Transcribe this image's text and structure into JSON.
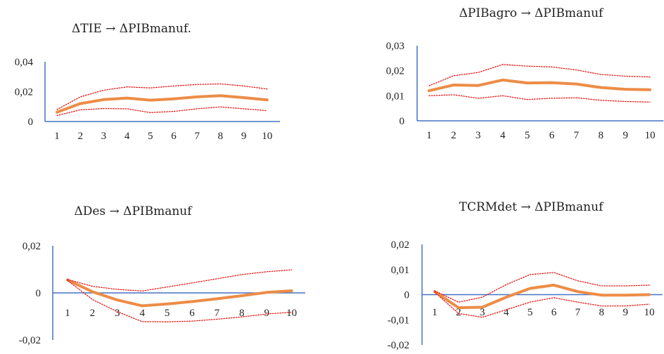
{
  "colors": {
    "axis": "#4472C4",
    "irf": "#ED8C46",
    "band": "#E01C1C"
  },
  "chart_data": [
    {
      "type": "line",
      "title": "ΔTIE → ΔPIBmanuf.",
      "x": [
        1,
        2,
        3,
        4,
        5,
        6,
        7,
        8,
        9,
        10
      ],
      "ylim": [
        0,
        0.04
      ],
      "yticks": [
        0,
        0.02,
        0.04
      ],
      "ytick_labels": [
        "0",
        "0,02",
        "0,04"
      ],
      "xtick_labels": [
        "1",
        "2",
        "3",
        "4",
        "5",
        "6",
        "7",
        "8",
        "9",
        "10"
      ],
      "series": [
        {
          "role": "irf",
          "values": [
            0.0062,
            0.012,
            0.0147,
            0.0157,
            0.0143,
            0.0152,
            0.0165,
            0.0173,
            0.016,
            0.0145
          ]
        },
        {
          "role": "upper",
          "values": [
            0.008,
            0.0165,
            0.021,
            0.0232,
            0.0225,
            0.0238,
            0.0248,
            0.0252,
            0.0238,
            0.0218
          ]
        },
        {
          "role": "lower",
          "values": [
            0.004,
            0.0078,
            0.0087,
            0.0085,
            0.006,
            0.0068,
            0.0085,
            0.0098,
            0.0085,
            0.0073
          ]
        }
      ]
    },
    {
      "type": "line",
      "title": "ΔPIBagro → ΔPIBmanuf",
      "x": [
        1,
        2,
        3,
        4,
        5,
        6,
        7,
        8,
        9,
        10
      ],
      "ylim": [
        0,
        0.03
      ],
      "yticks": [
        0,
        0.01,
        0.02,
        0.03
      ],
      "ytick_labels": [
        "0",
        "0,01",
        "0,02",
        "0,03"
      ],
      "xtick_labels": [
        "1",
        "2",
        "3",
        "4",
        "5",
        "6",
        "7",
        "8",
        "9",
        "10"
      ],
      "series": [
        {
          "role": "irf",
          "values": [
            0.012,
            0.0143,
            0.0141,
            0.0163,
            0.0151,
            0.0152,
            0.0147,
            0.0133,
            0.0126,
            0.0124
          ]
        },
        {
          "role": "upper",
          "values": [
            0.014,
            0.018,
            0.0193,
            0.0225,
            0.0218,
            0.0215,
            0.0203,
            0.0185,
            0.0178,
            0.0175
          ]
        },
        {
          "role": "lower",
          "values": [
            0.01,
            0.0104,
            0.009,
            0.01,
            0.0085,
            0.009,
            0.0092,
            0.0082,
            0.0077,
            0.0075
          ]
        }
      ]
    },
    {
      "type": "line",
      "title": "ΔDes → ΔPIBmanuf",
      "x": [
        1,
        2,
        3,
        4,
        5,
        6,
        7,
        8,
        9,
        10
      ],
      "ylim": [
        -0.02,
        0.02
      ],
      "yticks": [
        -0.02,
        0,
        0.02
      ],
      "ytick_labels": [
        "-0,02",
        "0",
        "0,02"
      ],
      "xtick_labels": [
        "1",
        "2",
        "3",
        "4",
        "5",
        "6",
        "7",
        "8",
        "9",
        "10"
      ],
      "series": [
        {
          "role": "irf",
          "values": [
            0.0055,
            0.0005,
            -0.003,
            -0.0055,
            -0.0047,
            -0.0037,
            -0.0025,
            -0.0012,
            0.0002,
            0.0009
          ]
        },
        {
          "role": "upper",
          "values": [
            0.0057,
            0.0028,
            0.0015,
            0.0008,
            0.0025,
            0.0042,
            0.006,
            0.0078,
            0.009,
            0.0098
          ]
        },
        {
          "role": "lower",
          "values": [
            0.0053,
            -0.0028,
            -0.008,
            -0.0122,
            -0.0123,
            -0.012,
            -0.0112,
            -0.0102,
            -0.009,
            -0.0082
          ]
        }
      ]
    },
    {
      "type": "line",
      "title": "TCRMdet → ΔPIBmanuf",
      "x": [
        1,
        2,
        3,
        4,
        5,
        6,
        7,
        8,
        9,
        10
      ],
      "ylim": [
        -0.02,
        0.02
      ],
      "yticks": [
        -0.02,
        -0.01,
        0,
        0.01,
        0.02
      ],
      "ytick_labels": [
        "-0,02",
        "-0,01",
        "0",
        "0,01",
        "0,02"
      ],
      "xtick_labels": [
        "1",
        "2",
        "3",
        "4",
        "5",
        "6",
        "7",
        "8",
        "9",
        "10"
      ],
      "series": [
        {
          "role": "irf",
          "values": [
            0.0012,
            -0.0052,
            -0.005,
            -0.001,
            0.0025,
            0.0038,
            0.0012,
            -0.0002,
            -0.0002,
            0.0
          ]
        },
        {
          "role": "upper",
          "values": [
            0.0015,
            -0.003,
            -0.001,
            0.004,
            0.008,
            0.0088,
            0.0055,
            0.0035,
            0.0035,
            0.0038
          ]
        },
        {
          "role": "lower",
          "values": [
            0.001,
            -0.0075,
            -0.009,
            -0.006,
            -0.003,
            -0.0012,
            -0.003,
            -0.0045,
            -0.0045,
            -0.0038
          ]
        }
      ]
    }
  ]
}
